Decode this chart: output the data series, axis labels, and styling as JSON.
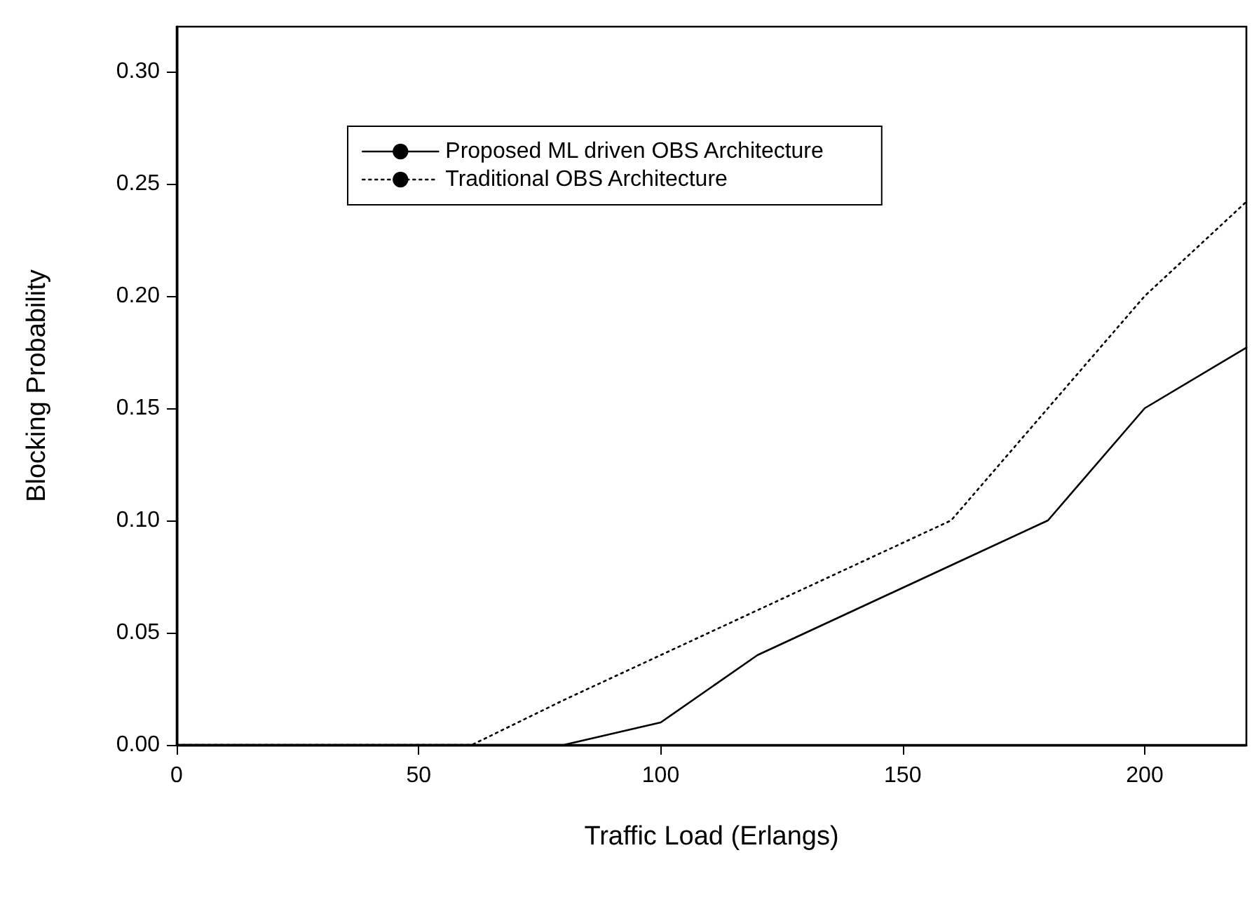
{
  "chart_data": {
    "type": "line",
    "xlabel": "Traffic Load (Erlangs)",
    "ylabel": "Blocking Probability",
    "xlim": [
      0,
      221
    ],
    "xticks": [
      0,
      50,
      100,
      150,
      200
    ],
    "ylim": [
      0,
      0.32
    ],
    "yticks": [
      {
        "value": 0,
        "label": "0.00"
      },
      {
        "value": 0.05,
        "label": "0.05"
      },
      {
        "value": 0.1,
        "label": "0.10"
      },
      {
        "value": 0.15,
        "label": "0.15"
      },
      {
        "value": 0.2,
        "label": "0.20"
      },
      {
        "value": 0.25,
        "label": "0.25"
      },
      {
        "value": 0.3,
        "label": "0.30"
      }
    ],
    "grid": false,
    "legend": "top left",
    "marker": "none",
    "series": [
      {
        "name": "Proposed ML driven OBS Architecture",
        "color": "#000000",
        "line_style": "solid",
        "x": [
          0,
          80,
          100,
          120,
          140,
          160,
          180,
          200,
          221
        ],
        "values": [
          0,
          0,
          0.01,
          0.04,
          0.06,
          0.08,
          0.1,
          0.15,
          0.177
        ]
      },
      {
        "name": "Traditional OBS Architecture",
        "color": "#000000",
        "line_style": "dotted",
        "x": [
          0,
          61,
          80,
          100,
          120,
          140,
          160,
          180,
          200,
          221
        ],
        "values": [
          0,
          0,
          0.02,
          0.04,
          0.06,
          0.08,
          0.1,
          0.15,
          0.2,
          0.242
        ]
      }
    ]
  }
}
